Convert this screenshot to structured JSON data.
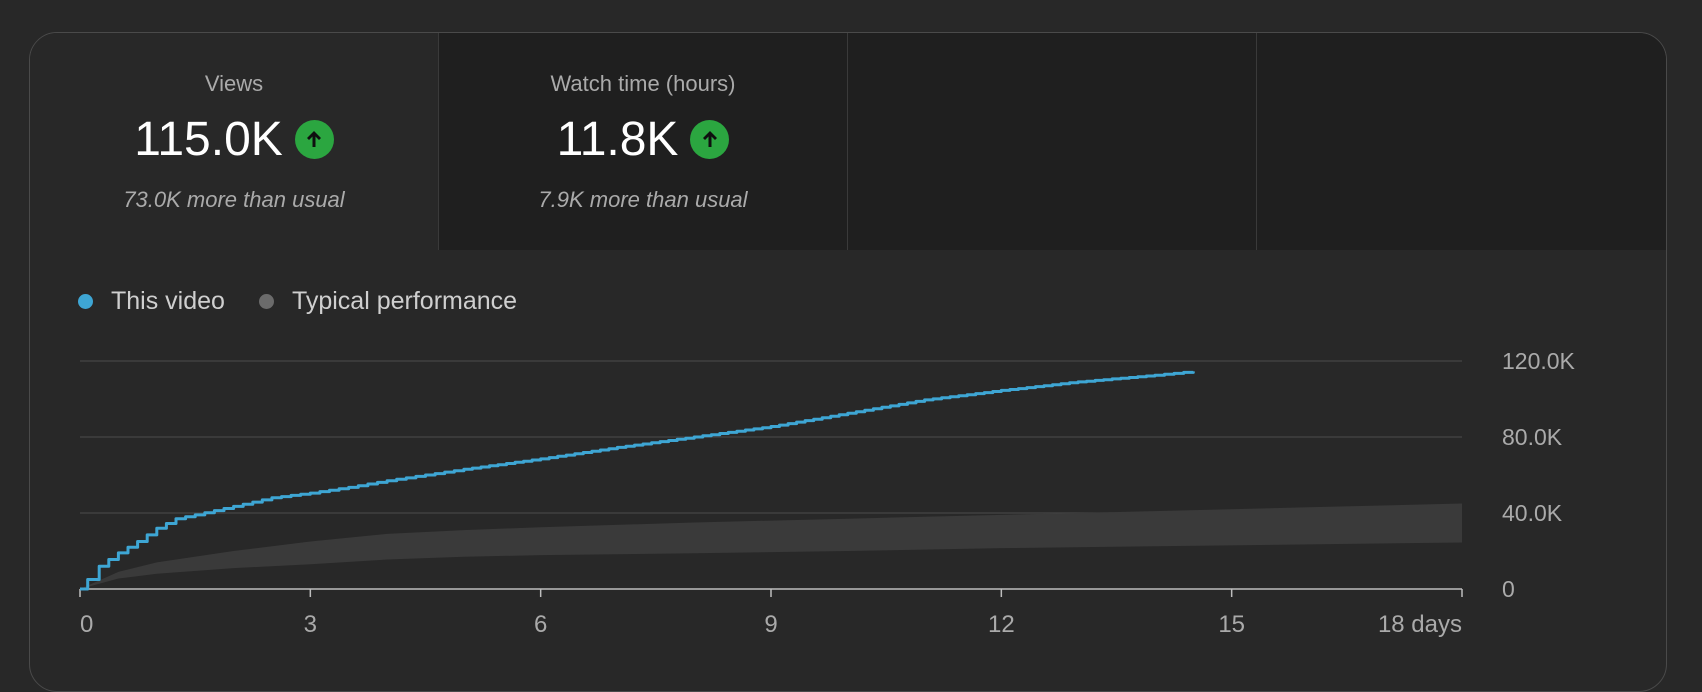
{
  "metrics": [
    {
      "label": "Views",
      "value": "115.0K",
      "sub": "73.0K more than usual",
      "trend": "up"
    },
    {
      "label": "Watch time (hours)",
      "value": "11.8K",
      "sub": "7.9K more than usual",
      "trend": "up"
    },
    {
      "label": "",
      "value": "",
      "sub": ""
    },
    {
      "label": "",
      "value": "",
      "sub": ""
    }
  ],
  "colors": {
    "this_video": "#3ea6d4",
    "typical": "#6b6b6b",
    "band": "#3a3a3a",
    "trend_up": "#2ba640"
  },
  "legend": {
    "this_video": "This video",
    "typical": "Typical performance"
  },
  "chart_data": {
    "type": "line",
    "xlabel": "",
    "ylabel": "",
    "xlim": [
      0,
      18
    ],
    "ylim": [
      0,
      120000
    ],
    "grid": true,
    "legend_position": "top-left",
    "x_ticks": [
      {
        "value": 0,
        "label": "0"
      },
      {
        "value": 3,
        "label": "3"
      },
      {
        "value": 6,
        "label": "6"
      },
      {
        "value": 9,
        "label": "9"
      },
      {
        "value": 12,
        "label": "12"
      },
      {
        "value": 15,
        "label": "15"
      },
      {
        "value": 18,
        "label": "18 days"
      }
    ],
    "y_ticks": [
      {
        "value": 0,
        "label": "0"
      },
      {
        "value": 40000,
        "label": "40.0K"
      },
      {
        "value": 80000,
        "label": "80.0K"
      },
      {
        "value": 120000,
        "label": "120.0K"
      }
    ],
    "series": [
      {
        "name": "This video",
        "x": [
          0,
          0.1,
          0.25,
          0.5,
          0.75,
          1.0,
          1.25,
          1.5,
          2,
          2.5,
          3,
          3.5,
          4,
          4.5,
          5,
          6,
          7,
          8,
          9,
          10,
          11,
          12,
          13,
          14,
          14.5
        ],
        "y": [
          0,
          5000,
          12000,
          19000,
          25000,
          32000,
          37000,
          39000,
          43500,
          48000,
          50500,
          53500,
          57000,
          60000,
          63000,
          68500,
          74500,
          80000,
          85500,
          92500,
          99500,
          104500,
          109000,
          112500,
          114500
        ]
      },
      {
        "name": "Typical performance",
        "band": true,
        "x": [
          0,
          0.5,
          1,
          2,
          3,
          4,
          5,
          6,
          8,
          10,
          12,
          14,
          16,
          18
        ],
        "upper": [
          0,
          9000,
          14000,
          20000,
          25000,
          29000,
          31000,
          32500,
          35000,
          37000,
          39000,
          41000,
          43000,
          45000
        ],
        "lower": [
          0,
          5500,
          8000,
          11000,
          13000,
          15500,
          17000,
          17800,
          18800,
          20000,
          21500,
          22500,
          23500,
          24500
        ]
      }
    ]
  }
}
